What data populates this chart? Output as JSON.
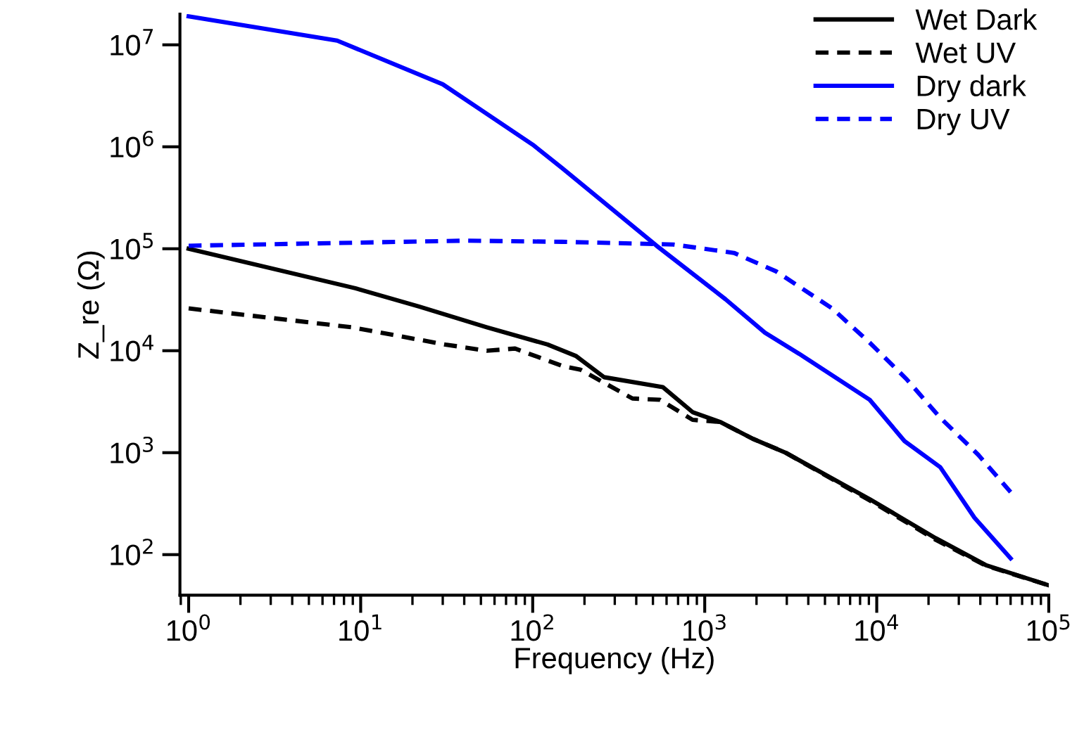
{
  "chart_data": {
    "type": "line",
    "xlabel": "Frequency (Hz)",
    "ylabel": "Z_re (Ω)",
    "log": "xy",
    "legend": "top right",
    "grid": false,
    "xlim": [
      0.89,
      100000
    ],
    "ylim": [
      40,
      20000000
    ],
    "xticks": [
      {
        "value": 1,
        "label": "10$^{0}$"
      },
      {
        "value": 10,
        "label": "10$^{1}$"
      },
      {
        "value": 100,
        "label": "10$^{2}$"
      },
      {
        "value": 1000,
        "label": "10$^{3}$"
      },
      {
        "value": 10000,
        "label": "10$^{4}$"
      },
      {
        "value": 100000,
        "label": "10$^{5}$"
      }
    ],
    "yticks": [
      {
        "value": 100,
        "label": "10$^{2}$"
      },
      {
        "value": 1000,
        "label": "10$^{3}$"
      },
      {
        "value": 10000,
        "label": "10$^{4}$"
      },
      {
        "value": 100000,
        "label": "10$^{5}$"
      },
      {
        "value": 1000000,
        "label": "10$^{6}$"
      },
      {
        "value": 10000000,
        "label": "10$^{7}$"
      }
    ],
    "series": [
      {
        "name": "Wet Dark",
        "color": "#000000",
        "line_style": "solid",
        "x": [
          1,
          9.3,
          22,
          54,
          122,
          178,
          260,
          570,
          850,
          1230,
          1900,
          2950,
          9100,
          22000,
          43000,
          100000
        ],
        "values": [
          100000,
          41000,
          27000,
          17000,
          11500,
          8900,
          5500,
          4400,
          2500,
          2000,
          1370,
          1000,
          350,
          145,
          79,
          50
        ]
      },
      {
        "name": "Wet UV",
        "color": "#000000",
        "line_style": "dashed",
        "x": [
          1,
          8.8,
          31,
          54,
          79,
          148,
          190,
          380,
          550,
          850,
          1230,
          1900,
          2950,
          9100,
          22000,
          43000,
          100000
        ],
        "values": [
          26000,
          17000,
          11500,
          10000,
          10500,
          7100,
          6500,
          3400,
          3300,
          2100,
          2000,
          1370,
          1000,
          340,
          140,
          78,
          50
        ]
      },
      {
        "name": "Dry dark",
        "color": "#0000ff",
        "line_style": "solid",
        "x": [
          1,
          7.3,
          30,
          50,
          100,
          148,
          525,
          1320,
          2240,
          3550,
          9100,
          14500,
          23400,
          37000,
          60000
        ],
        "values": [
          19000000,
          11000000,
          4100000,
          2300000,
          1050000,
          620000,
          107000,
          32000,
          15000,
          9300,
          3300,
          1300,
          720,
          230,
          92
        ]
      },
      {
        "name": "Dry UV",
        "color": "#0000ff",
        "line_style": "dashed",
        "x": [
          1,
          40,
          148,
          660,
          1480,
          2600,
          5500,
          9100,
          15000,
          23400,
          39000,
          60000
        ],
        "values": [
          107000,
          120000,
          117000,
          110000,
          91000,
          60000,
          26000,
          12000,
          5200,
          2200,
          950,
          410
        ]
      }
    ]
  }
}
